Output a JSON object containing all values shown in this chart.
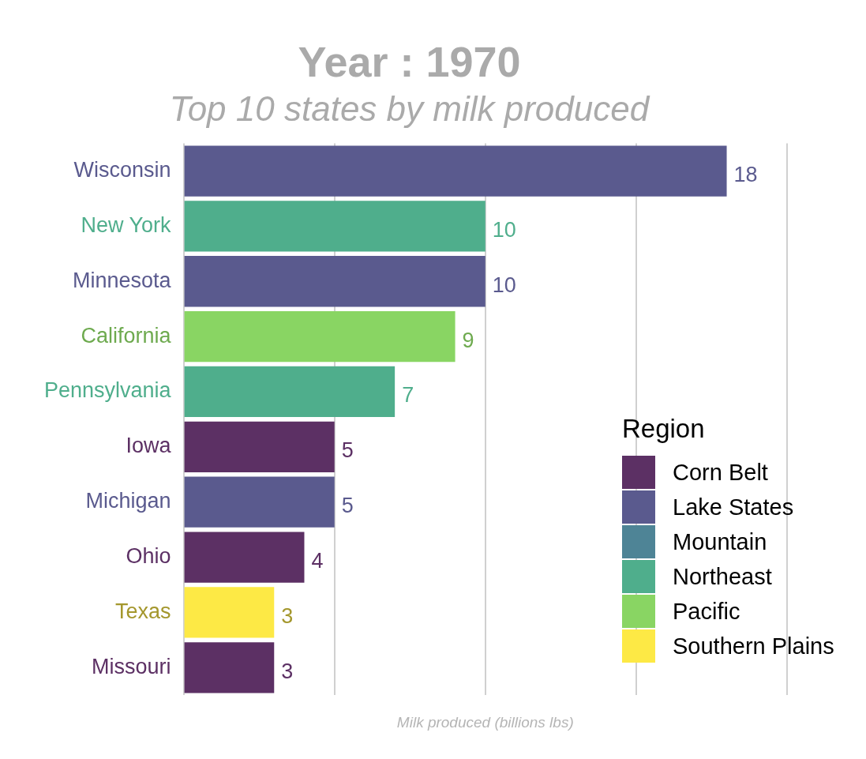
{
  "chart_data": {
    "type": "bar",
    "orientation": "horizontal",
    "title": "Year : 1970",
    "subtitle": "Top 10 states by milk produced",
    "xlabel": "Milk produced (billions lbs)",
    "legend_title": "Region",
    "legend": "bottom right",
    "grid": "x",
    "tick_labels": "y",
    "categories": [
      "Wisconsin",
      "New York",
      "Minnesota",
      "California",
      "Pennsylvania",
      "Iowa",
      "Michigan",
      "Ohio",
      "Texas",
      "Missouri"
    ],
    "series": [
      {
        "name": "Corn Belt",
        "color": "#5c3064",
        "values": [
          null,
          null,
          null,
          null,
          null,
          5,
          null,
          4,
          null,
          3
        ]
      },
      {
        "name": "Lake States",
        "color": "#5a5a8e",
        "values": [
          18,
          null,
          10,
          null,
          null,
          null,
          5,
          null,
          null,
          null
        ]
      },
      {
        "name": "Mountain",
        "color": "#4e8496",
        "values": [
          null,
          null,
          null,
          null,
          null,
          null,
          null,
          null,
          null,
          null
        ]
      },
      {
        "name": "Northeast",
        "color": "#4fae8c",
        "values": [
          null,
          10,
          null,
          null,
          7,
          null,
          null,
          null,
          null,
          null
        ]
      },
      {
        "name": "Pacific",
        "color": "#89d563",
        "values": [
          null,
          null,
          null,
          9,
          null,
          null,
          null,
          null,
          null,
          null
        ]
      },
      {
        "name": "Southern Plains",
        "color": "#fde945",
        "values": [
          null,
          null,
          null,
          null,
          null,
          null,
          null,
          null,
          3,
          null
        ]
      }
    ],
    "data_labels": true
  }
}
